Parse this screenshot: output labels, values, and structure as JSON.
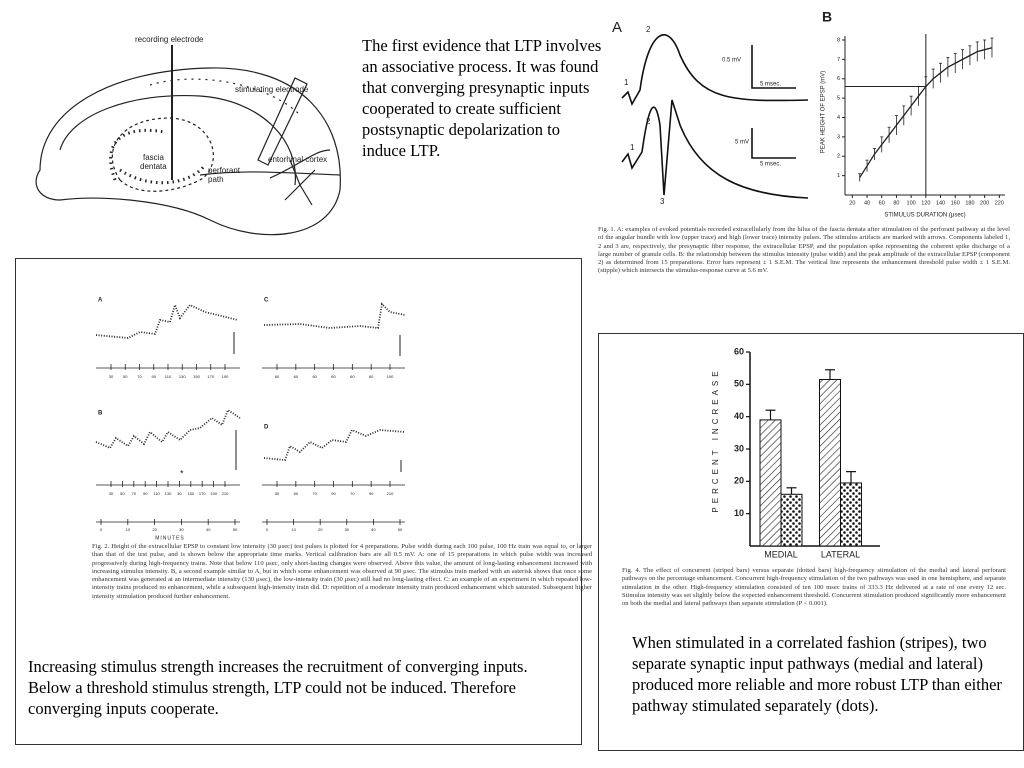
{
  "intro_text": "The first evidence that LTP involves an associative process. It was  found that converging presynaptic inputs cooperated to create sufficient postsynaptic depolarization to induce LTP.",
  "hippocampus_figure": {
    "labels": [
      "recording electrode",
      "stimulating electrode",
      "fascia",
      "dentata",
      "perforant",
      "path",
      "entorhinal cortex"
    ]
  },
  "figure1": {
    "panel_a": {
      "letter": "A",
      "scale_labels": [
        "0.5 mV",
        "5 msec.",
        "5 mV",
        "5 msec."
      ],
      "component_labels": [
        "1",
        "2",
        "1",
        "2",
        "3"
      ]
    },
    "caption": "Fig. 1. A: examples of evoked potentials recorded extracellularly from the hilus of the fascia dentata after stimulation of the perforant pathway at the level of the angular bundle with low (upper trace) and high (lower trace) intensity pulses. The stimulus artifacts are marked with arrows. Components labeled 1, 2 and 3 are, respectively, the presynaptic fiber response, the extracellular EPSP, and the population spike representing the coherent spike discharge of a large number of granule cells. B: the relationship between the stimulus intensity (pulse width) and the peak amplitude of the extracellular EPSP (component 2) as determined from 15 preparations. Error bars represent ± 1 S.E.M. The vertical line represents the enhancement threshold pulse width ± 1 S.E.M. (stipple) which intersects the stimulus-response curve at 5.6 mV."
  },
  "figure2": {
    "panels": [
      {
        "letter": "A",
        "ticks": [
          "30",
          "50",
          "70",
          "90",
          "110",
          "130",
          "150",
          "170",
          "190"
        ]
      },
      {
        "letter": "C",
        "ticks": [
          "60",
          "60",
          "60",
          "60",
          "60",
          "60",
          "190"
        ]
      },
      {
        "letter": "B",
        "ticks": [
          "30",
          "50",
          "70",
          "90",
          "110",
          "130",
          "30",
          "150",
          "170",
          "190",
          "210"
        ]
      },
      {
        "letter": "D",
        "ticks": [
          "30",
          "50",
          "70",
          "90",
          "70",
          "90",
          "210"
        ]
      }
    ],
    "asterisk": "*",
    "minutes_ticks": [
      "0",
      "10",
      "20",
      "30",
      "40",
      "50"
    ],
    "minutes_label": "MINUTES",
    "caption": "Fig. 2. Height of the extracellular EPSP to constant low intensity (30 μsec) test pulses is plotted for 4 preparations. Pulse width during each 100 pulse, 100 Hz train was equal to, or larger than that of the test pulse, and is shown below the appropriate time marks. Vertical calibration bars are all 0.5 mV. A: one of 15 preparations in which pulse width was increased progressively during high-frequency trains. Note that below 110 μsec, only short-lasting changes were observed. Above this value, the amount of long-lasting enhancement increased with increasing stimulus intensity. B, a second example similar to A, but in which some enhancement was observed at 90 μsec. The stimulus train marked with an asterisk shows that once some enhancement was generated at an intermediate intensity (130 μsec), the low-intensity train (30 μsec) still had no long-lasting effect. C: an example of an experiment in which repeated low-intensity trains produced no enhancement, while a subsequent high-intensity train did. D: repetition of a moderate intensity train produced enhancement which saturated. Subsequent higher intensity stimulation produced further enhancement.",
    "summary": "Increasing stimulus strength increases the recruitment of converging inputs.  Below a threshold stimulus strength, LTP could not be induced.  Therefore converging inputs cooperate."
  },
  "figure4": {
    "caption": "Fig. 4. The effect of concurrent (striped bars) versus separate (dotted bars) high-frequency stimulation of the medial and lateral perforant pathways on the percentage enhancement. Concurrent high-frequency stimulation of the two pathways was used in one hemisphere, and separate stimulation in the other. High-frequency stimulation consisted of ten 100 msec trains of 333.3 Hz delivered at a rate of one every 12 sec. Stimulus intensity was set slightly below the expected enhancement threshold. Concurrent stimulation produced significantly more enhancement on both the medial and lateral pathways than separate stimulation (P < 0.001).",
    "summary": "When stimulated in a correlated fashion (stripes), two separate synaptic input pathways (medial and lateral) produced more reliable and more robust LTP than either pathway stimulated separately (dots)."
  },
  "chart_data": [
    {
      "type": "line",
      "title": "B",
      "xlabel": "STIMULUS DURATION (μsec)",
      "ylabel": "PEAK HEIGHT OF EPSP (mV)",
      "x": [
        30,
        40,
        50,
        60,
        70,
        80,
        90,
        100,
        110,
        120,
        130,
        140,
        150,
        160,
        170,
        180,
        190,
        200,
        210
      ],
      "series": [
        {
          "color": "#222",
          "values": [
            0.9,
            1.5,
            2.1,
            2.6,
            3.1,
            3.6,
            4.1,
            4.6,
            5.1,
            5.6,
            6.0,
            6.3,
            6.6,
            6.8,
            7.0,
            7.2,
            7.4,
            7.5,
            7.6
          ],
          "errors": [
            0.2,
            0.3,
            0.3,
            0.4,
            0.4,
            0.5,
            0.5,
            0.5,
            0.5,
            0.5,
            0.5,
            0.5,
            0.5,
            0.5,
            0.5,
            0.5,
            0.5,
            0.5,
            0.5
          ]
        }
      ],
      "xlim": [
        10,
        225
      ],
      "ylim": [
        0,
        8
      ],
      "xticks": [
        20,
        40,
        60,
        80,
        100,
        120,
        140,
        160,
        180,
        200,
        220
      ],
      "yticks": [
        1,
        2,
        3,
        4,
        5,
        6,
        7,
        8
      ],
      "threshold": {
        "x": 120,
        "y": 5.6
      }
    },
    {
      "type": "bar",
      "ylabel": "PERCENT INCREASE",
      "categories": [
        "MEDIAL",
        "LATERAL"
      ],
      "series": [
        {
          "pattern": "stripes",
          "values": [
            39,
            51.5
          ],
          "errors": [
            3,
            3
          ]
        },
        {
          "pattern": "dots",
          "values": [
            16,
            19.5
          ],
          "errors": [
            2,
            3.5
          ]
        }
      ],
      "ylim": [
        0,
        60
      ],
      "yticks": [
        10,
        20,
        30,
        40,
        50,
        60
      ]
    }
  ]
}
